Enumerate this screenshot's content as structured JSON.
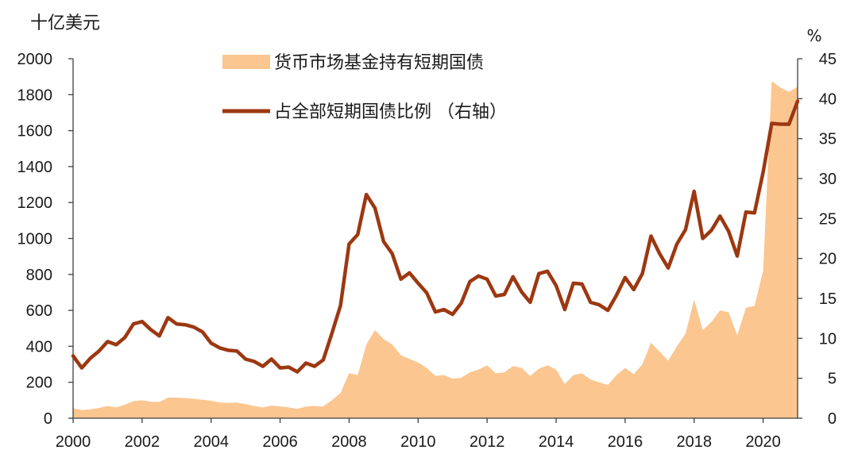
{
  "chart_data": {
    "type": "area",
    "title": "",
    "grid": false,
    "legend_position": "top-left",
    "xlim": [
      2000,
      2021
    ],
    "x_ticks": [
      "2000",
      "2002",
      "2004",
      "2006",
      "2008",
      "2010",
      "2012",
      "2014",
      "2016",
      "2018",
      "2020"
    ],
    "x": [
      2000,
      2000.25,
      2000.5,
      2000.75,
      2001,
      2001.25,
      2001.5,
      2001.75,
      2002,
      2002.25,
      2002.5,
      2002.75,
      2003,
      2003.25,
      2003.5,
      2003.75,
      2004,
      2004.25,
      2004.5,
      2004.75,
      2005,
      2005.25,
      2005.5,
      2005.75,
      2006,
      2006.25,
      2006.5,
      2006.75,
      2007,
      2007.25,
      2007.5,
      2007.75,
      2008,
      2008.25,
      2008.5,
      2008.75,
      2009,
      2009.25,
      2009.5,
      2009.75,
      2010,
      2010.25,
      2010.5,
      2010.75,
      2011,
      2011.25,
      2011.5,
      2011.75,
      2012,
      2012.25,
      2012.5,
      2012.75,
      2013,
      2013.25,
      2013.5,
      2013.75,
      2014,
      2014.25,
      2014.5,
      2014.75,
      2015,
      2015.25,
      2015.5,
      2015.75,
      2016,
      2016.25,
      2016.5,
      2016.75,
      2017,
      2017.25,
      2017.5,
      2017.75,
      2018,
      2018.25,
      2018.5,
      2018.75,
      2019,
      2019.25,
      2019.5,
      2019.75,
      2020,
      2020.25,
      2020.5,
      2020.75,
      2021
    ],
    "y_left": {
      "label": "十亿美元",
      "range": [
        0,
        2000
      ],
      "ticks": [
        "0",
        "200",
        "400",
        "600",
        "800",
        "1000",
        "1200",
        "1400",
        "1600",
        "1800",
        "2000"
      ]
    },
    "y_right": {
      "label": "%",
      "range": [
        0,
        45
      ],
      "ticks": [
        "0",
        "5",
        "10",
        "15",
        "20",
        "25",
        "30",
        "35",
        "40",
        "45"
      ]
    },
    "series": [
      {
        "name": "货币市场基金持有短期国债",
        "type": "area",
        "axis": "left",
        "color": "#FBC690",
        "values": [
          55,
          45,
          50,
          57,
          68,
          60,
          75,
          95,
          100,
          92,
          90,
          115,
          115,
          112,
          108,
          103,
          97,
          88,
          85,
          87,
          78,
          68,
          60,
          70,
          66,
          60,
          52,
          65,
          68,
          65,
          100,
          140,
          250,
          240,
          410,
          490,
          440,
          410,
          350,
          330,
          310,
          280,
          235,
          240,
          220,
          225,
          255,
          270,
          295,
          250,
          255,
          290,
          280,
          235,
          275,
          295,
          270,
          190,
          240,
          250,
          215,
          200,
          185,
          240,
          280,
          245,
          300,
          420,
          370,
          320,
          400,
          470,
          660,
          490,
          535,
          600,
          590,
          460,
          615,
          625,
          820,
          1875,
          1840,
          1815,
          1845
        ]
      },
      {
        "name": "占全部短期国债比例 （右轴）",
        "type": "line",
        "axis": "right",
        "color": "#9C3811",
        "values": [
          7.8,
          6.3,
          7.5,
          8.4,
          9.6,
          9.2,
          10.1,
          11.8,
          12.1,
          11.1,
          10.3,
          12.6,
          11.8,
          11.7,
          11.4,
          10.8,
          9.4,
          8.8,
          8.5,
          8.4,
          7.4,
          7.1,
          6.5,
          7.4,
          6.3,
          6.4,
          5.8,
          6.9,
          6.5,
          7.3,
          10.6,
          14.1,
          21.8,
          23.0,
          28.0,
          26.3,
          22.1,
          20.6,
          17.4,
          18.2,
          16.9,
          15.7,
          13.3,
          13.6,
          13.0,
          14.4,
          17.1,
          17.8,
          17.4,
          15.3,
          15.5,
          17.7,
          15.8,
          14.5,
          18.1,
          18.4,
          16.6,
          13.6,
          16.9,
          16.8,
          14.5,
          14.2,
          13.5,
          15.4,
          17.6,
          16.1,
          18.1,
          22.8,
          20.6,
          18.8,
          21.8,
          23.6,
          28.4,
          22.5,
          23.5,
          25.3,
          23.4,
          20.3,
          25.8,
          25.7,
          30.8,
          36.9,
          36.8,
          36.8,
          39.7
        ]
      }
    ]
  }
}
